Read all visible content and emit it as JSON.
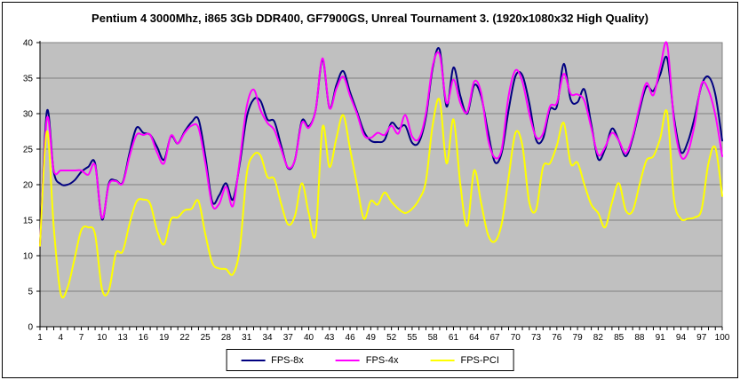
{
  "chart_data": {
    "type": "line",
    "title": "Pentium 4 3000Mhz, i865 3Gb DDR400, GF7900GS, Unreal Tournament 3. (1920x1080x32 High Quality)",
    "xlabel": "",
    "ylabel": "",
    "x_range": [
      1,
      100
    ],
    "ylim": [
      0,
      40
    ],
    "yticks": [
      0,
      5,
      10,
      15,
      20,
      25,
      30,
      35,
      40
    ],
    "xtick_labels": [
      1,
      4,
      7,
      10,
      13,
      16,
      19,
      22,
      25,
      28,
      31,
      34,
      37,
      40,
      43,
      46,
      49,
      52,
      55,
      58,
      61,
      64,
      67,
      70,
      73,
      76,
      79,
      82,
      85,
      88,
      91,
      94,
      97,
      100
    ],
    "grid": true,
    "legend_position": "bottom",
    "plot_bg_color": "#C0C0C0",
    "grid_color": "#808080",
    "axis_color": "#000000",
    "line_style": "smooth",
    "series": [
      {
        "name": "FPS-8x",
        "color": "#000080",
        "values": [
          11.4,
          30.3,
          21.8,
          20.1,
          20,
          20.6,
          21.8,
          22.5,
          23,
          15.1,
          20.2,
          20.6,
          20.3,
          24.5,
          28,
          27.3,
          27,
          25.3,
          23.5,
          26.8,
          25.8,
          27.5,
          28.8,
          29.2,
          24,
          17.6,
          18.5,
          20.2,
          17.9,
          23,
          29.5,
          32,
          31.8,
          29.2,
          28.9,
          25.5,
          22.3,
          23.5,
          29,
          28.2,
          30.5,
          37.6,
          30.8,
          34,
          36,
          33,
          30.3,
          27.5,
          26.2,
          26,
          26.3,
          28.7,
          27.9,
          28.3,
          25.9,
          26,
          29.5,
          36.5,
          39,
          31,
          36.5,
          32.5,
          30,
          34,
          32.5,
          27.5,
          23.2,
          24.5,
          30.5,
          35.3,
          35.4,
          31.5,
          26.3,
          26.5,
          30.6,
          31,
          37,
          32,
          31.6,
          33.4,
          28.5,
          23.6,
          25,
          27.9,
          26.2,
          24,
          26.5,
          30.5,
          33.8,
          33.2,
          35.5,
          37.8,
          29.5,
          24.6,
          26,
          29.5,
          34,
          35.2,
          32.7,
          26.2
        ]
      },
      {
        "name": "FPS-4x",
        "color": "#FF00FF",
        "values": [
          11.4,
          29.3,
          22,
          22,
          22,
          22,
          22,
          21.4,
          22.7,
          15.3,
          20,
          20.5,
          20.2,
          24,
          27,
          27,
          27,
          24.5,
          23,
          26.9,
          25.8,
          27.3,
          28.3,
          28,
          23,
          17.1,
          17.3,
          19.7,
          17,
          23.5,
          31,
          33.4,
          30.5,
          28.7,
          27.7,
          25,
          22.4,
          23.5,
          28.7,
          28,
          30.5,
          37.8,
          30.8,
          33.5,
          35.2,
          32.5,
          30,
          27,
          26.6,
          27.3,
          27,
          28.3,
          27.2,
          29.8,
          26.8,
          26.5,
          30,
          36.8,
          38.3,
          31.5,
          34.8,
          31.5,
          30.2,
          34.5,
          33,
          26.5,
          23.8,
          25,
          32.5,
          36.1,
          34.5,
          30,
          26.7,
          27.2,
          31,
          31.5,
          35.6,
          32.8,
          32.7,
          31.8,
          28,
          24.2,
          25.3,
          27.3,
          26.2,
          24.4,
          26.8,
          31,
          34.3,
          32.6,
          36.5,
          39.8,
          29,
          24,
          24.5,
          28.5,
          34.2,
          33.3,
          29.8,
          24
        ]
      },
      {
        "name": "FPS-PCI",
        "color": "#FFFF00",
        "values": [
          11.4,
          27.5,
          14,
          4.7,
          5.5,
          9.5,
          13.6,
          14,
          13,
          5.3,
          5.1,
          10.3,
          10.6,
          14.5,
          17.6,
          17.9,
          17.3,
          13.5,
          11.6,
          15.1,
          15.4,
          16.4,
          16.6,
          17.7,
          13,
          9,
          8.2,
          8.1,
          7.4,
          11,
          21.5,
          24.2,
          24.1,
          21.1,
          20.8,
          17.3,
          14.4,
          15.6,
          20.2,
          16,
          13.1,
          28.1,
          22.5,
          26.5,
          29.8,
          25,
          20,
          15.2,
          17.7,
          17.2,
          18.9,
          17.6,
          16.6,
          16,
          16.6,
          17.9,
          20.5,
          28.5,
          31.9,
          23,
          29.2,
          20,
          14.2,
          22,
          17.5,
          13,
          12,
          14.5,
          21,
          27.3,
          25.5,
          17.5,
          16.5,
          22.5,
          23,
          25.5,
          28.7,
          23,
          23.1,
          20,
          17.2,
          16,
          14,
          17.5,
          20.2,
          16.4,
          16.3,
          20,
          23.4,
          24,
          26.5,
          30.2,
          18,
          15.2,
          15.2,
          15.4,
          16.5,
          23,
          25.2,
          18.4
        ]
      }
    ]
  },
  "legend": {
    "items": [
      {
        "label": "FPS-8x",
        "color": "#000080"
      },
      {
        "label": "FPS-4x",
        "color": "#FF00FF"
      },
      {
        "label": "FPS-PCI",
        "color": "#FFFF00"
      }
    ]
  }
}
